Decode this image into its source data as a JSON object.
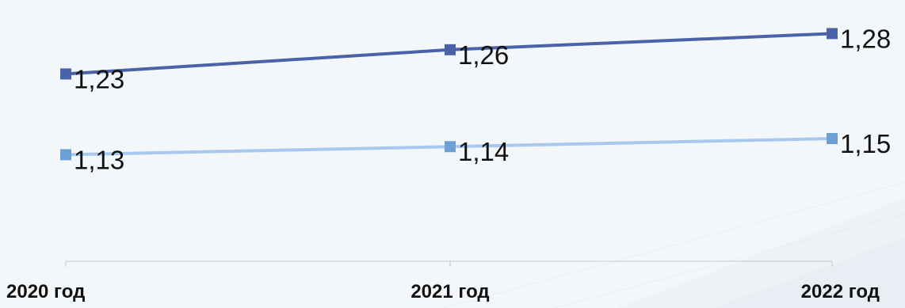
{
  "chart_data": {
    "type": "line",
    "categories": [
      "2020 год",
      "2021 год",
      "2022 год"
    ],
    "series": [
      {
        "values": [
          1.23,
          1.26,
          1.28
        ],
        "labels": [
          "1,23",
          "1,26",
          "1,28"
        ],
        "color": "#4a63a8"
      },
      {
        "values": [
          1.13,
          1.14,
          1.15
        ],
        "labels": [
          "1,13",
          "1,14",
          "1,15"
        ],
        "color": "#a9c8ef",
        "marker_color": "#6c9fd3"
      }
    ],
    "title": "",
    "xlabel": "",
    "ylabel": "",
    "ylim": [
      1.0,
      1.3
    ],
    "grid": false,
    "legend": "none"
  },
  "colors": {
    "axis": "#c8c8c8",
    "background": "#f4f7fa",
    "decoration": "#dfe7ef"
  }
}
